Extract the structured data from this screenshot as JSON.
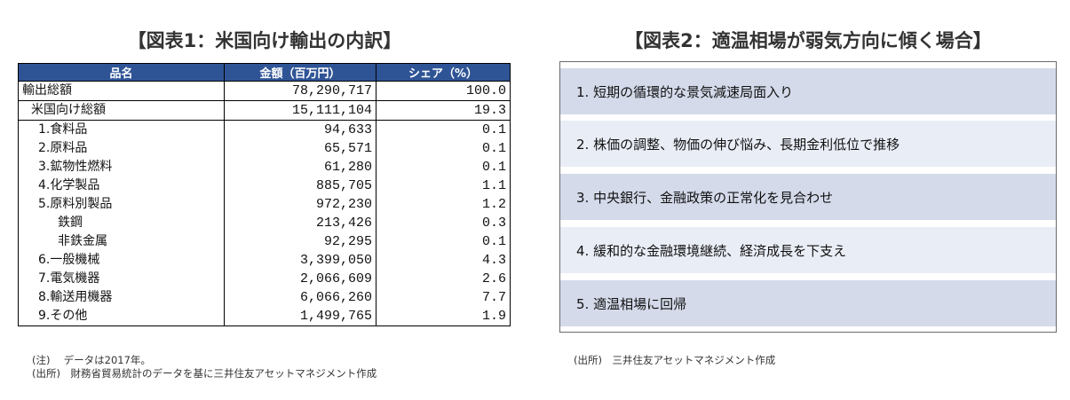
{
  "figure1": {
    "title": "【図表1：米国向け輸出の内訳】",
    "headers": [
      "品名",
      "金額（百万円）",
      "シェア（%）"
    ],
    "rows": [
      {
        "name": "輸出総額",
        "amount": "78,290,717",
        "share": "100.0"
      },
      {
        "name": "米国向け総額",
        "amount": "15,111,104",
        "share": "19.3"
      },
      {
        "name": "1.食料品",
        "amount": "94,633",
        "share": "0.1"
      },
      {
        "name": "2.原料品",
        "amount": "65,571",
        "share": "0.1"
      },
      {
        "name": "3.鉱物性燃料",
        "amount": "61,280",
        "share": "0.1"
      },
      {
        "name": "4.化学製品",
        "amount": "885,705",
        "share": "1.1"
      },
      {
        "name": "5.原料別製品",
        "amount": "972,230",
        "share": "1.2"
      },
      {
        "name": "鉄鋼",
        "amount": "213,426",
        "share": "0.3"
      },
      {
        "name": "非鉄金属",
        "amount": "92,295",
        "share": "0.1"
      },
      {
        "name": "6.一般機械",
        "amount": "3,399,050",
        "share": "4.3"
      },
      {
        "name": "7.電気機器",
        "amount": "2,066,609",
        "share": "2.6"
      },
      {
        "name": "8.輸送用機器",
        "amount": "6,066,260",
        "share": "7.7"
      },
      {
        "name": "9.その他",
        "amount": "1,499,765",
        "share": "1.9"
      }
    ],
    "note": "(注)　 データは2017年。",
    "source": "(出所)　財務省貿易統計のデータを基に三井住友アセットマネジメント作成"
  },
  "figure2": {
    "title": "【図表2：適温相場が弱気方向に傾く場合】",
    "steps": [
      "1. 短期の循環的な景気減速局面入り",
      "2. 株価の調整、物価の伸び悩み、長期金利低位で推移",
      "3. 中央銀行、金融政策の正常化を見合わせ",
      "4. 緩和的な金融環境継続、経済成長を下支え",
      "5. 適温相場に回帰"
    ],
    "source": "(出所)　三井住友アセットマネジメント作成"
  },
  "colors": {
    "table_header_bg": "#2f5496",
    "step_dark": "#d4daea",
    "step_light": "#e9edf6"
  }
}
